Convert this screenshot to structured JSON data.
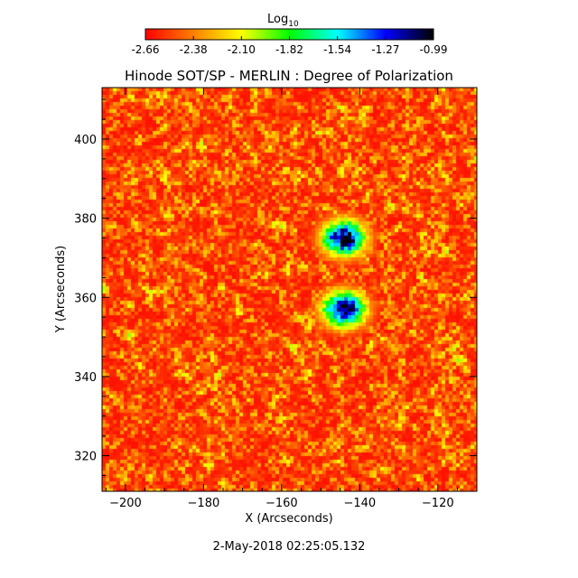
{
  "colorbar": {
    "title_base": "Log",
    "title_sub": "10",
    "ticks": [
      "-2.66",
      "-2.38",
      "-2.10",
      "-1.82",
      "-1.54",
      "-1.27",
      "-0.99"
    ],
    "colors": [
      "#ff0000",
      "#ff8000",
      "#ffff00",
      "#00ff00",
      "#00ffff",
      "#0000ff",
      "#000000"
    ]
  },
  "chart_data": {
    "type": "heatmap",
    "title": "Hinode SOT/SP - MERLIN : Degree of Polarization",
    "xlabel": "X (Arcseconds)",
    "ylabel": "Y (Arcseconds)",
    "xlim": [
      -206,
      -110
    ],
    "ylim": [
      311,
      413
    ],
    "xticks": [
      -200,
      -180,
      -160,
      -140,
      -120
    ],
    "yticks": [
      320,
      340,
      360,
      380,
      400
    ],
    "value_range": [
      -2.66,
      -0.99
    ],
    "value_scale": "log10",
    "features": [
      {
        "name": "polarized-region-north",
        "x": -144,
        "y": 375,
        "peak": -1.0
      },
      {
        "name": "polarized-region-south",
        "x": -144,
        "y": 357,
        "peak": -0.99
      }
    ]
  },
  "footer": {
    "timestamp": "2-May-2018 02:25:05.132"
  }
}
